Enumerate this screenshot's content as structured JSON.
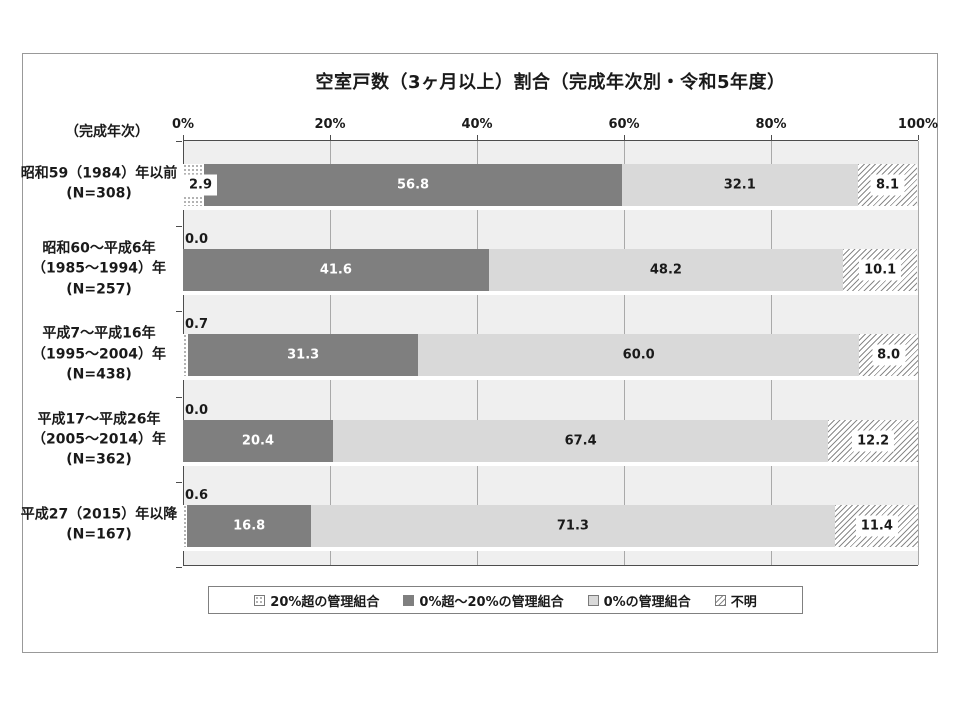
{
  "title": "空室戸数（3ヶ月以上）割合（完成年次別・令和5年度）",
  "axis_caption": "（完成年次）",
  "x_ticks": [
    "0%",
    "20%",
    "40%",
    "60%",
    "80%",
    "100%"
  ],
  "colors": {
    "segment_dark": "#7f7f7f",
    "segment_light": "#d9d9d9",
    "plot_background": "#efefef",
    "gridline": "#a9a9a9",
    "axis_line": "#4d4d4d"
  },
  "legend": [
    {
      "label": "20%超の管理組合",
      "pattern": "dots"
    },
    {
      "label": "0%超～20%の管理組合",
      "pattern": "dark"
    },
    {
      "label": "0%の管理組合",
      "pattern": "light"
    },
    {
      "label": "不明",
      "pattern": "hatch"
    }
  ],
  "chart_data": {
    "type": "bar",
    "orientation": "horizontal-stacked",
    "title": "空室戸数（3ヶ月以上）割合（完成年次別・令和5年度）",
    "xlabel": "",
    "ylabel": "（完成年次）",
    "xlim": [
      0,
      100
    ],
    "x_tick_interval": 20,
    "grid": true,
    "legend_position": "bottom",
    "categories": [
      "昭和59（1984）年以前 (N=308)",
      "昭和60～平成6年（1985～1994）年 (N=257)",
      "平成7～平成16年（1995～2004）年 (N=438)",
      "平成17～平成26年（2005～2014）年 (N=362)",
      "平成27（2015）年以降 (N=167)"
    ],
    "categories_lines": [
      [
        "昭和59（1984）年以前",
        "(N=308)"
      ],
      [
        "昭和60～平成6年",
        "（1985～1994）年",
        "(N=257)"
      ],
      [
        "平成7～平成16年",
        "（1995～2004）年",
        "(N=438)"
      ],
      [
        "平成17～平成26年",
        "（2005～2014）年",
        "(N=362)"
      ],
      [
        "平成27（2015）年以降",
        "(N=167)"
      ]
    ],
    "series": [
      {
        "name": "20%超の管理組合",
        "pattern": "dots",
        "values": [
          2.9,
          0.0,
          0.7,
          0.0,
          0.6
        ]
      },
      {
        "name": "0%超～20%の管理組合",
        "pattern": "dark",
        "values": [
          56.8,
          41.6,
          31.3,
          20.4,
          16.8
        ]
      },
      {
        "name": "0%の管理組合",
        "pattern": "light",
        "values": [
          32.1,
          48.2,
          60.0,
          67.4,
          71.3
        ]
      },
      {
        "name": "不明",
        "pattern": "hatch",
        "values": [
          8.1,
          10.1,
          8.0,
          12.2,
          11.4
        ]
      }
    ]
  }
}
